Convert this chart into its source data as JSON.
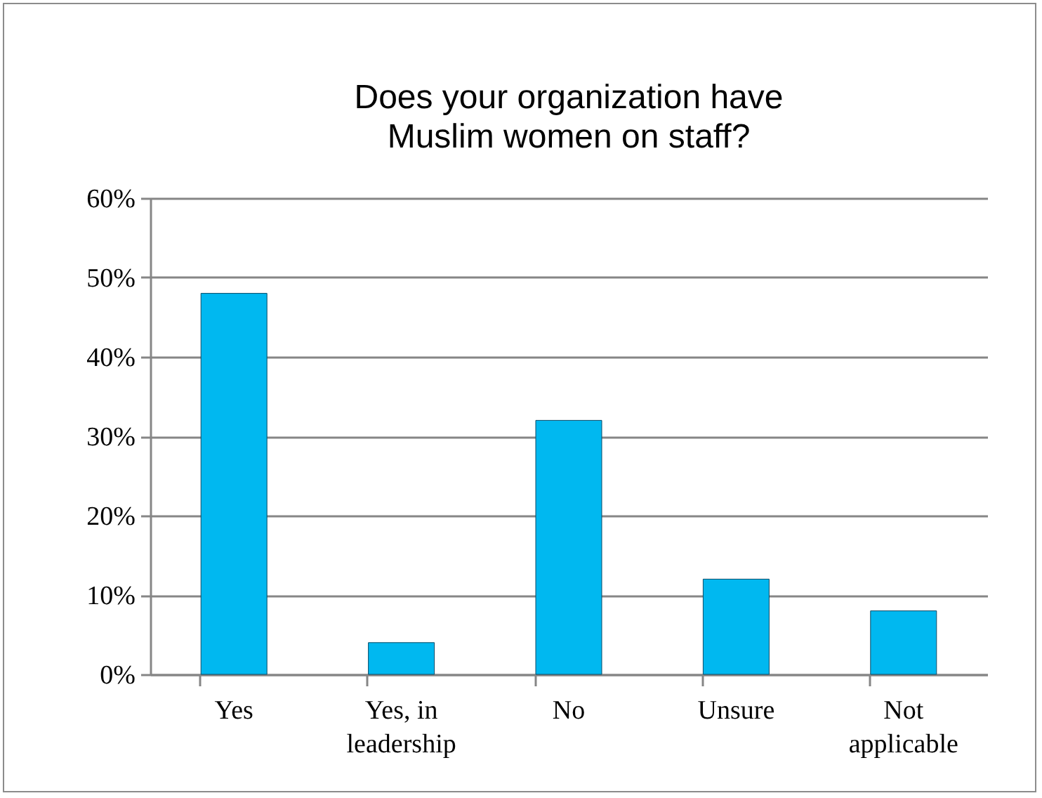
{
  "chart_data": {
    "type": "bar",
    "title": "Does your organization have Muslim women on staff?",
    "categories": [
      "Yes",
      "Yes, in leadership",
      "No",
      "Unsure",
      "Not applicable"
    ],
    "values": [
      48,
      4,
      32,
      12,
      8
    ],
    "color": "#00b8f0",
    "ylim": [
      0,
      60
    ],
    "yticks": [
      {
        "value": 0,
        "label": "0%"
      },
      {
        "value": 10,
        "label": "10%"
      },
      {
        "value": 20,
        "label": "20%"
      },
      {
        "value": 30,
        "label": "30%"
      },
      {
        "value": 40,
        "label": "40%"
      },
      {
        "value": 50,
        "label": "50%"
      },
      {
        "value": 60,
        "label": "60%"
      }
    ],
    "grid": "y"
  }
}
